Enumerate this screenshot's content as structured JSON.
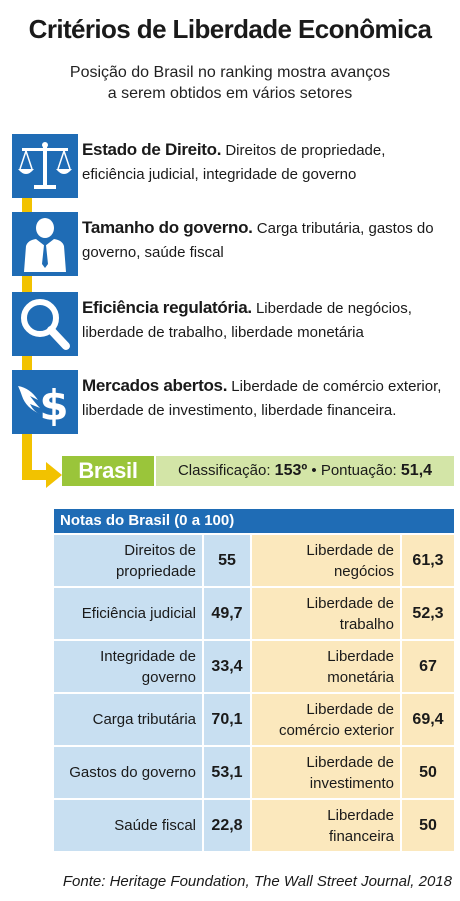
{
  "header": {
    "title": "Critérios de Liberdade Econômica",
    "subtitle_line1": "Posição do Brasil no ranking mostra avanços",
    "subtitle_line2": "a serem obtidos em vários setores"
  },
  "criteria": [
    {
      "icon": "scales-of-justice-icon",
      "title": "Estado de Direito.",
      "desc_line1": "Direitos de propriedade,",
      "desc_line2": "eficiência judicial, integridade de governo"
    },
    {
      "icon": "government-official-icon",
      "title": "Tamanho do governo.",
      "desc_line1": "Carga tributária, gastos do",
      "desc_line2": "governo, saúde fiscal"
    },
    {
      "icon": "magnifying-glass-icon",
      "title": "Eficiência regulatória.",
      "desc_line1": "Liberdade de negócios,",
      "desc_line2": "liberdade de trabalho, liberdade monetária"
    },
    {
      "icon": "winged-dollar-icon",
      "title": "Mercados abertos.",
      "desc_line1": "Liberdade de comércio exterior,",
      "desc_line2": "liberdade de investimento, liberdade financeira."
    }
  ],
  "brasil": {
    "label": "Brasil",
    "classification_label": "Classificação:",
    "classification_value": "153º",
    "separator": "•",
    "score_label": "Pontuação:",
    "score_value": "51,4"
  },
  "table": {
    "header": "Notas do Brasil (0 a 100)",
    "rows": [
      {
        "left_l1": "Direitos de",
        "left_l2": "propriedade",
        "left_value": "55",
        "right_l1": "Liberdade de",
        "right_l2": "negócios",
        "right_value": "61,3"
      },
      {
        "left_l1": "Eficiência judicial",
        "left_l2": "",
        "left_value": "49,7",
        "right_l1": "Liberdade de",
        "right_l2": "trabalho",
        "right_value": "52,3"
      },
      {
        "left_l1": "Integridade de",
        "left_l2": "governo",
        "left_value": "33,4",
        "right_l1": "Liberdade",
        "right_l2": "monetária",
        "right_value": "67"
      },
      {
        "left_l1": "Carga tributária",
        "left_l2": "",
        "left_value": "70,1",
        "right_l1": "Liberdade de",
        "right_l2": "comércio exterior",
        "right_value": "69,4"
      },
      {
        "left_l1": "Gastos do governo",
        "left_l2": "",
        "left_value": "53,1",
        "right_l1": "Liberdade de",
        "right_l2": "investimento",
        "right_value": "50"
      },
      {
        "left_l1": "Saúde fiscal",
        "left_l2": "",
        "left_value": "22,8",
        "right_l1": "Liberdade",
        "right_l2": "financeira",
        "right_value": "50"
      }
    ]
  },
  "source": "Fonte: Heritage Foundation, The Wall Street Journal, 2018",
  "colors": {
    "blue": "#1f6cb5",
    "yellow": "#f2c200",
    "green": "#9ac53a",
    "light_green": "#d3e5a7",
    "light_blue": "#c8dff1",
    "light_orange": "#fbe8bd"
  }
}
